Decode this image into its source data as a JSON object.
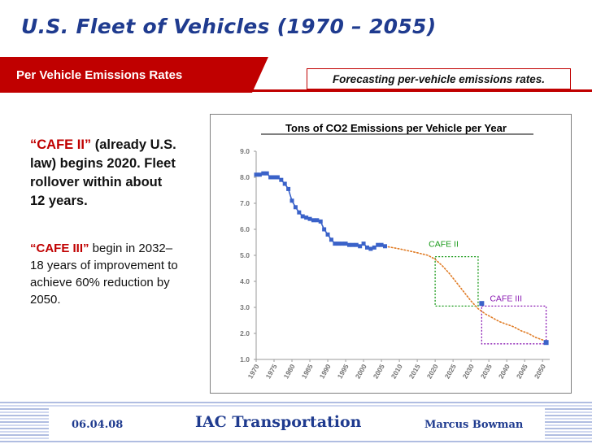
{
  "slide": {
    "title": "U.S. Fleet of Vehicles (1970 – 2055)",
    "section_title": "Per Vehicle Emissions Rates",
    "forecast_note": "Forecasting per-vehicle emissions rates."
  },
  "left_text": {
    "cafe2_label": "“CAFE II”",
    "cafe2_text": " (already U.S. law) begins 2020. Fleet rollover within about 12 years.",
    "cafe3_label": "“CAFE III”",
    "cafe3_text": " begin in 2032– 18 years of improvement to achieve 60% reduction by 2050."
  },
  "footer": {
    "date": "06.04.08",
    "center": "IAC Transportation",
    "author": "Marcus Bowman"
  },
  "colors": {
    "title_blue": "#1f3b8f",
    "accent_red": "#c00000",
    "series_blue": "#3a62c9",
    "forecast_orange": "#e07b24",
    "cafe2_green": "#1a9a1a",
    "cafe3_purple": "#8a1ab2"
  },
  "chart_data": {
    "type": "line",
    "title": "Tons of CO2 Emissions per Vehicle per Year",
    "xlim": [
      1970,
      2052
    ],
    "ylim": [
      1.0,
      9.0
    ],
    "y_ticks": [
      "1.0",
      "2.0",
      "3.0",
      "4.0",
      "5.0",
      "6.0",
      "7.0",
      "8.0",
      "9.0"
    ],
    "x_ticks": [
      "1970",
      "1975",
      "1980",
      "1985",
      "1990",
      "1995",
      "2000",
      "2005",
      "2010",
      "2015",
      "2020",
      "2025",
      "2030",
      "2035",
      "2040",
      "2045",
      "2050"
    ],
    "series": [
      {
        "style": "historical",
        "x": [
          1970,
          1971,
          1972,
          1973,
          1974,
          1975,
          1976,
          1977,
          1978,
          1979,
          1980,
          1981,
          1982,
          1983,
          1984,
          1985,
          1986,
          1987,
          1988,
          1989,
          1990,
          1991,
          1992,
          1993,
          1994,
          1995,
          1996,
          1997,
          1998,
          1999,
          2000,
          2001,
          2002,
          2003,
          2004,
          2005,
          2006
        ],
        "values": [
          8.1,
          8.1,
          8.15,
          8.15,
          8.0,
          8.0,
          8.0,
          7.9,
          7.75,
          7.55,
          7.1,
          6.85,
          6.65,
          6.5,
          6.45,
          6.4,
          6.35,
          6.35,
          6.3,
          6.0,
          5.8,
          5.6,
          5.45,
          5.45,
          5.45,
          5.45,
          5.4,
          5.4,
          5.4,
          5.35,
          5.45,
          5.3,
          5.25,
          5.3,
          5.4,
          5.4,
          5.35
        ]
      },
      {
        "style": "forecast",
        "x": [
          2006,
          2010,
          2015,
          2018,
          2020,
          2022,
          2024,
          2026,
          2028,
          2030,
          2032,
          2034,
          2036,
          2038,
          2040,
          2042,
          2044,
          2046,
          2048,
          2050,
          2051
        ],
        "values": [
          5.35,
          5.25,
          5.1,
          5.0,
          4.85,
          4.6,
          4.3,
          3.95,
          3.6,
          3.25,
          2.95,
          2.75,
          2.6,
          2.45,
          2.35,
          2.25,
          2.1,
          2.0,
          1.85,
          1.75,
          1.7
        ]
      }
    ],
    "highlight_points": [
      {
        "x": 2033,
        "value": 3.15
      },
      {
        "x": 2051,
        "value": 1.65
      }
    ],
    "annotations": [
      {
        "label": "CAFE II",
        "x_range": [
          2020,
          2032
        ],
        "y_range": [
          3.05,
          4.95
        ],
        "color": "#1a9a1a"
      },
      {
        "label": "CAFE III",
        "x_range": [
          2033,
          2051
        ],
        "y_range": [
          1.6,
          3.05
        ],
        "color": "#8a1ab2"
      }
    ],
    "grid": false
  }
}
